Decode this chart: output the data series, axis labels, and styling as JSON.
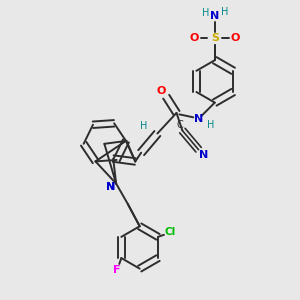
{
  "bg_color": "#e8e8e8",
  "bond_color": "#2d2d2d",
  "colors": {
    "N": "#0000cc",
    "O": "#ff0000",
    "S": "#ccaa00",
    "Cl": "#00bb00",
    "F": "#ff00ff",
    "C": "#2d2d2d",
    "H": "#008888"
  }
}
